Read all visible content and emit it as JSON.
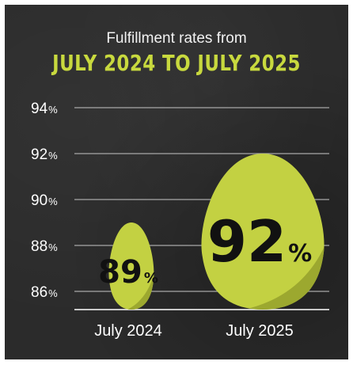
{
  "chart_data": {
    "type": "bubble",
    "subtitle": "Fulfillment rates from",
    "title": "JULY 2024 TO JULY 2025",
    "categories": [
      "July 2024",
      "July 2025"
    ],
    "values": [
      89,
      92
    ],
    "value_labels": [
      "89",
      "92"
    ],
    "unit": "%",
    "ylim": [
      85,
      94
    ],
    "yticks": [
      94,
      92,
      90,
      88,
      86
    ],
    "ytick_unit": "%",
    "grid": true,
    "colors": {
      "egg": "#c3d142",
      "egg_shadow": "#8f9a2a",
      "title": "#c8d93e",
      "background": "#2b2b2b",
      "gridline": "#a8a8a8"
    }
  }
}
